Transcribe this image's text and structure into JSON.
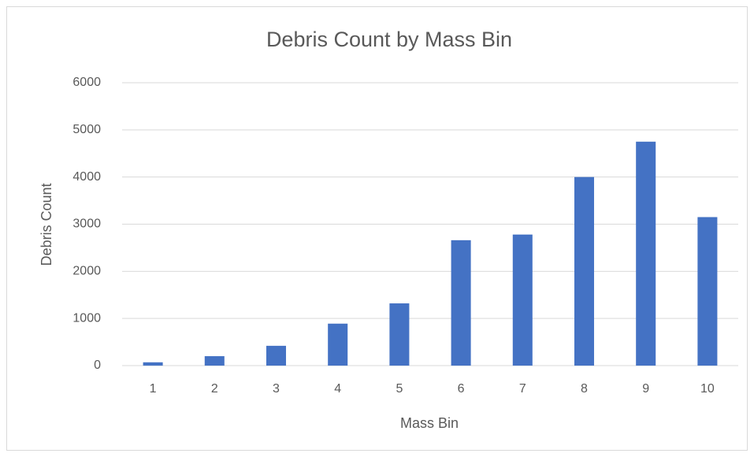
{
  "chart_data": {
    "type": "bar",
    "title": "Debris Count by Mass Bin",
    "x_label": "Mass Bin",
    "y_label": "Debris Count",
    "categories": [
      "1",
      "2",
      "3",
      "4",
      "5",
      "6",
      "7",
      "8",
      "9",
      "10"
    ],
    "values": [
      70,
      200,
      420,
      890,
      1320,
      2660,
      2780,
      4000,
      4750,
      3150
    ],
    "color": "#4472c4",
    "ylim": [
      0,
      6000
    ],
    "yticks": [
      0,
      1000,
      2000,
      3000,
      4000,
      5000,
      6000
    ],
    "grid": true
  }
}
